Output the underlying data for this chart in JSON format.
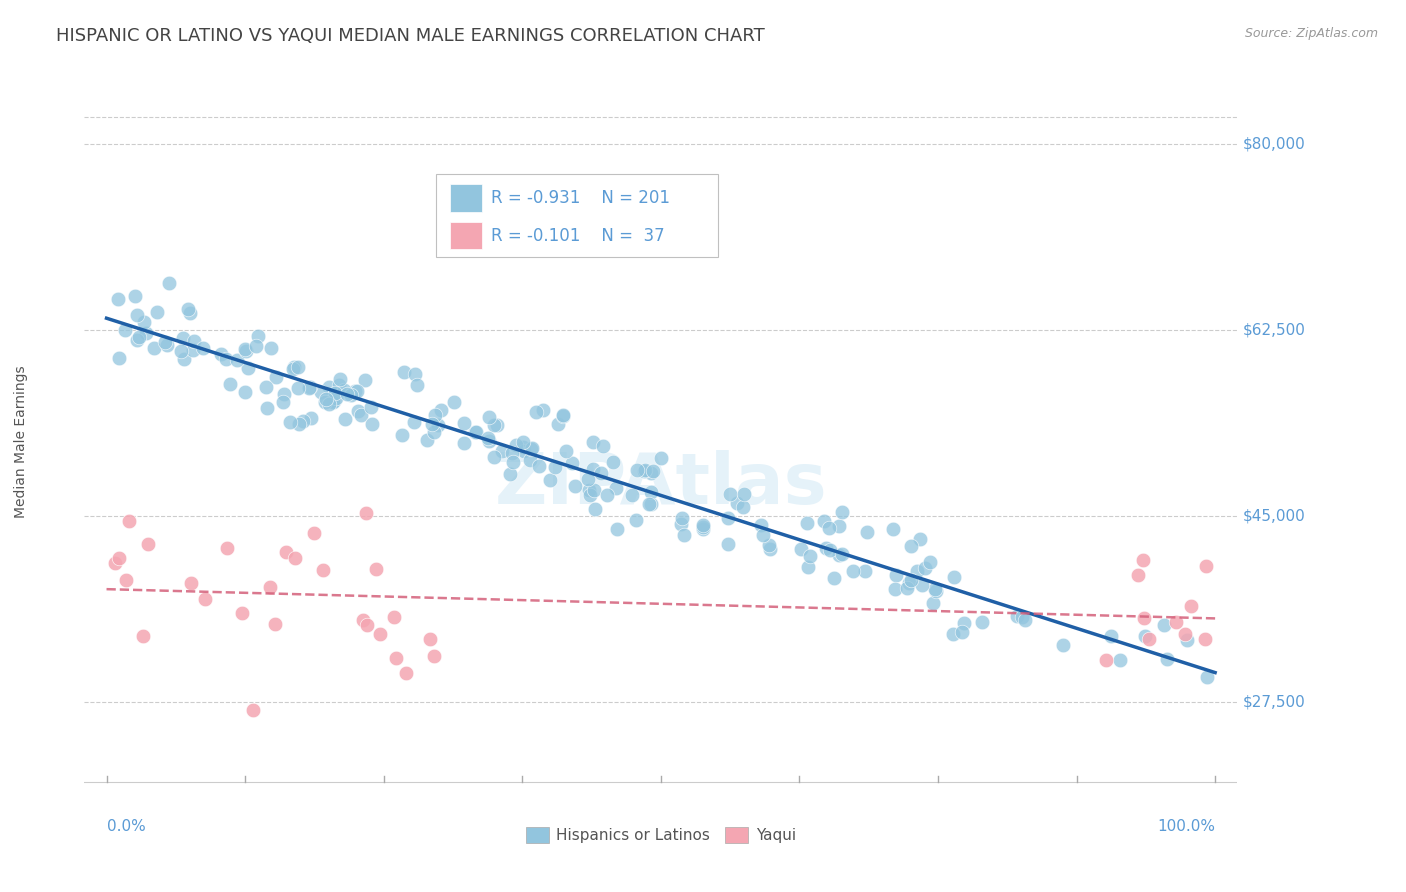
{
  "title": "HISPANIC OR LATINO VS YAQUI MEDIAN MALE EARNINGS CORRELATION CHART",
  "source_text": "Source: ZipAtlas.com",
  "ylabel": "Median Male Earnings",
  "ytick_values": [
    27500,
    45000,
    62500,
    80000
  ],
  "ytick_labels": [
    "$27,500",
    "$45,000",
    "$62,500",
    "$80,000"
  ],
  "title_fontsize": 13,
  "axis_label_fontsize": 10,
  "tick_fontsize": 11,
  "legend_r1": "-0.931",
  "legend_n1": "201",
  "legend_r2": "-0.101",
  "legend_n2": " 37",
  "legend_label1": "Hispanics or Latinos",
  "legend_label2": "Yaqui",
  "blue_color": "#92c5de",
  "pink_color": "#f4a6b2",
  "blue_line_color": "#1f5fa6",
  "pink_line_color": "#d4607a",
  "watermark": "ZIPAtlas",
  "background_color": "#ffffff",
  "grid_color": "#cccccc",
  "title_color": "#444444",
  "right_label_color": "#6aaed6",
  "label_text_color": "#5b9bd5"
}
